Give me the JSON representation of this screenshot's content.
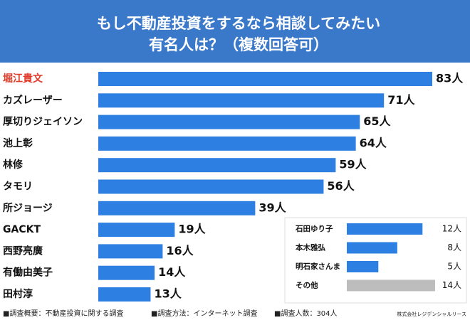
{
  "title_lines": [
    "もし不動産投資をするなら相談してみたい",
    "有名人は？（複数回答可）"
  ],
  "chart_data": [
    {
      "type": "bar",
      "orientation": "horizontal",
      "categories": [
        "堀江貴文",
        "カズレーザー",
        "厚切りジェイソン",
        "池上彰",
        "林修",
        "タモリ",
        "所ジョージ",
        "GACKT",
        "西野亮廣",
        "有働由美子",
        "田村淳"
      ],
      "values": [
        83,
        71,
        65,
        64,
        59,
        56,
        39,
        19,
        16,
        14,
        13
      ],
      "value_labels": [
        "83人",
        "71人",
        "65人",
        "64人",
        "59人",
        "56人",
        "39人",
        "19人",
        "16人",
        "14人",
        "13人"
      ],
      "color": "#2e7fe2",
      "label_colors": [
        "#e03a2b",
        "#111111",
        "#111111",
        "#111111",
        "#111111",
        "#111111",
        "#111111",
        "#111111",
        "#111111",
        "#111111",
        "#111111"
      ]
    },
    {
      "type": "bar",
      "orientation": "horizontal",
      "categories": [
        "石田ゆり子",
        "本木雅弘",
        "明石家さんま",
        "その他"
      ],
      "values": [
        12,
        8,
        5,
        14
      ],
      "value_labels": [
        "12人",
        "8人",
        "5人",
        "14人"
      ],
      "colors": [
        "#2e7fe2",
        "#2e7fe2",
        "#2e7fe2",
        "#bdbdbd"
      ]
    }
  ],
  "footer": {
    "notes": [
      "■調査概要：不動産投資に関する調査",
      "■調査方法：インターネット調査",
      "■調査人数：304人"
    ],
    "credit": "株式会社レジデンシャルリース"
  }
}
